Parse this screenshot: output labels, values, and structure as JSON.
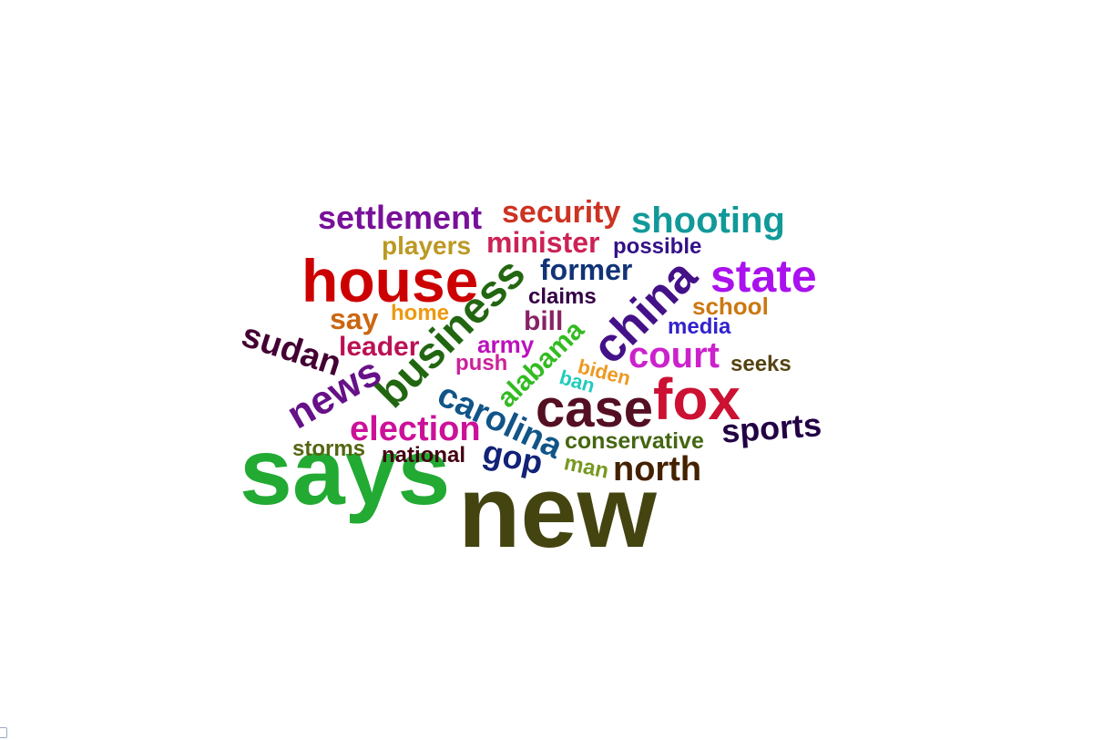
{
  "word_cloud": {
    "words": [
      {
        "text": "says",
        "color": "#22aa33"
      },
      {
        "text": "new",
        "color": "#444411"
      },
      {
        "text": "house",
        "color": "#cc0000"
      },
      {
        "text": "fox",
        "color": "#cc1133"
      },
      {
        "text": "case",
        "color": "#550f22"
      },
      {
        "text": "state",
        "color": "#aa11ee"
      },
      {
        "text": "china",
        "color": "#441188"
      },
      {
        "text": "business",
        "color": "#226611"
      },
      {
        "text": "news",
        "color": "#661188"
      },
      {
        "text": "shooting",
        "color": "#119999"
      },
      {
        "text": "settlement",
        "color": "#771199"
      },
      {
        "text": "security",
        "color": "#cc3322"
      },
      {
        "text": "sudan",
        "color": "#440033"
      },
      {
        "text": "court",
        "color": "#cc22cc"
      },
      {
        "text": "election",
        "color": "#cc1199"
      },
      {
        "text": "sports",
        "color": "#220044"
      },
      {
        "text": "north",
        "color": "#442200"
      },
      {
        "text": "carolina",
        "color": "#115588"
      },
      {
        "text": "former",
        "color": "#113377"
      },
      {
        "text": "minister",
        "color": "#cc2255"
      },
      {
        "text": "gop",
        "color": "#112277"
      },
      {
        "text": "say",
        "color": "#cc6611"
      },
      {
        "text": "leader",
        "color": "#bb1155"
      },
      {
        "text": "alabama",
        "color": "#33bb22"
      },
      {
        "text": "players",
        "color": "#bb9922"
      },
      {
        "text": "bill",
        "color": "#882266"
      },
      {
        "text": "conservative",
        "color": "#446611"
      },
      {
        "text": "home",
        "color": "#ee9911"
      },
      {
        "text": "army",
        "color": "#bb11bb"
      },
      {
        "text": "school",
        "color": "#cc7711"
      },
      {
        "text": "claims",
        "color": "#330044"
      },
      {
        "text": "media",
        "color": "#3322cc"
      },
      {
        "text": "push",
        "color": "#cc2299"
      },
      {
        "text": "biden",
        "color": "#ee9922"
      },
      {
        "text": "possible",
        "color": "#331188"
      },
      {
        "text": "seeks",
        "color": "#554411"
      },
      {
        "text": "storms",
        "color": "#556611"
      },
      {
        "text": "national",
        "color": "#440011"
      },
      {
        "text": "ban",
        "color": "#22ccbb"
      },
      {
        "text": "man",
        "color": "#779922"
      }
    ]
  }
}
